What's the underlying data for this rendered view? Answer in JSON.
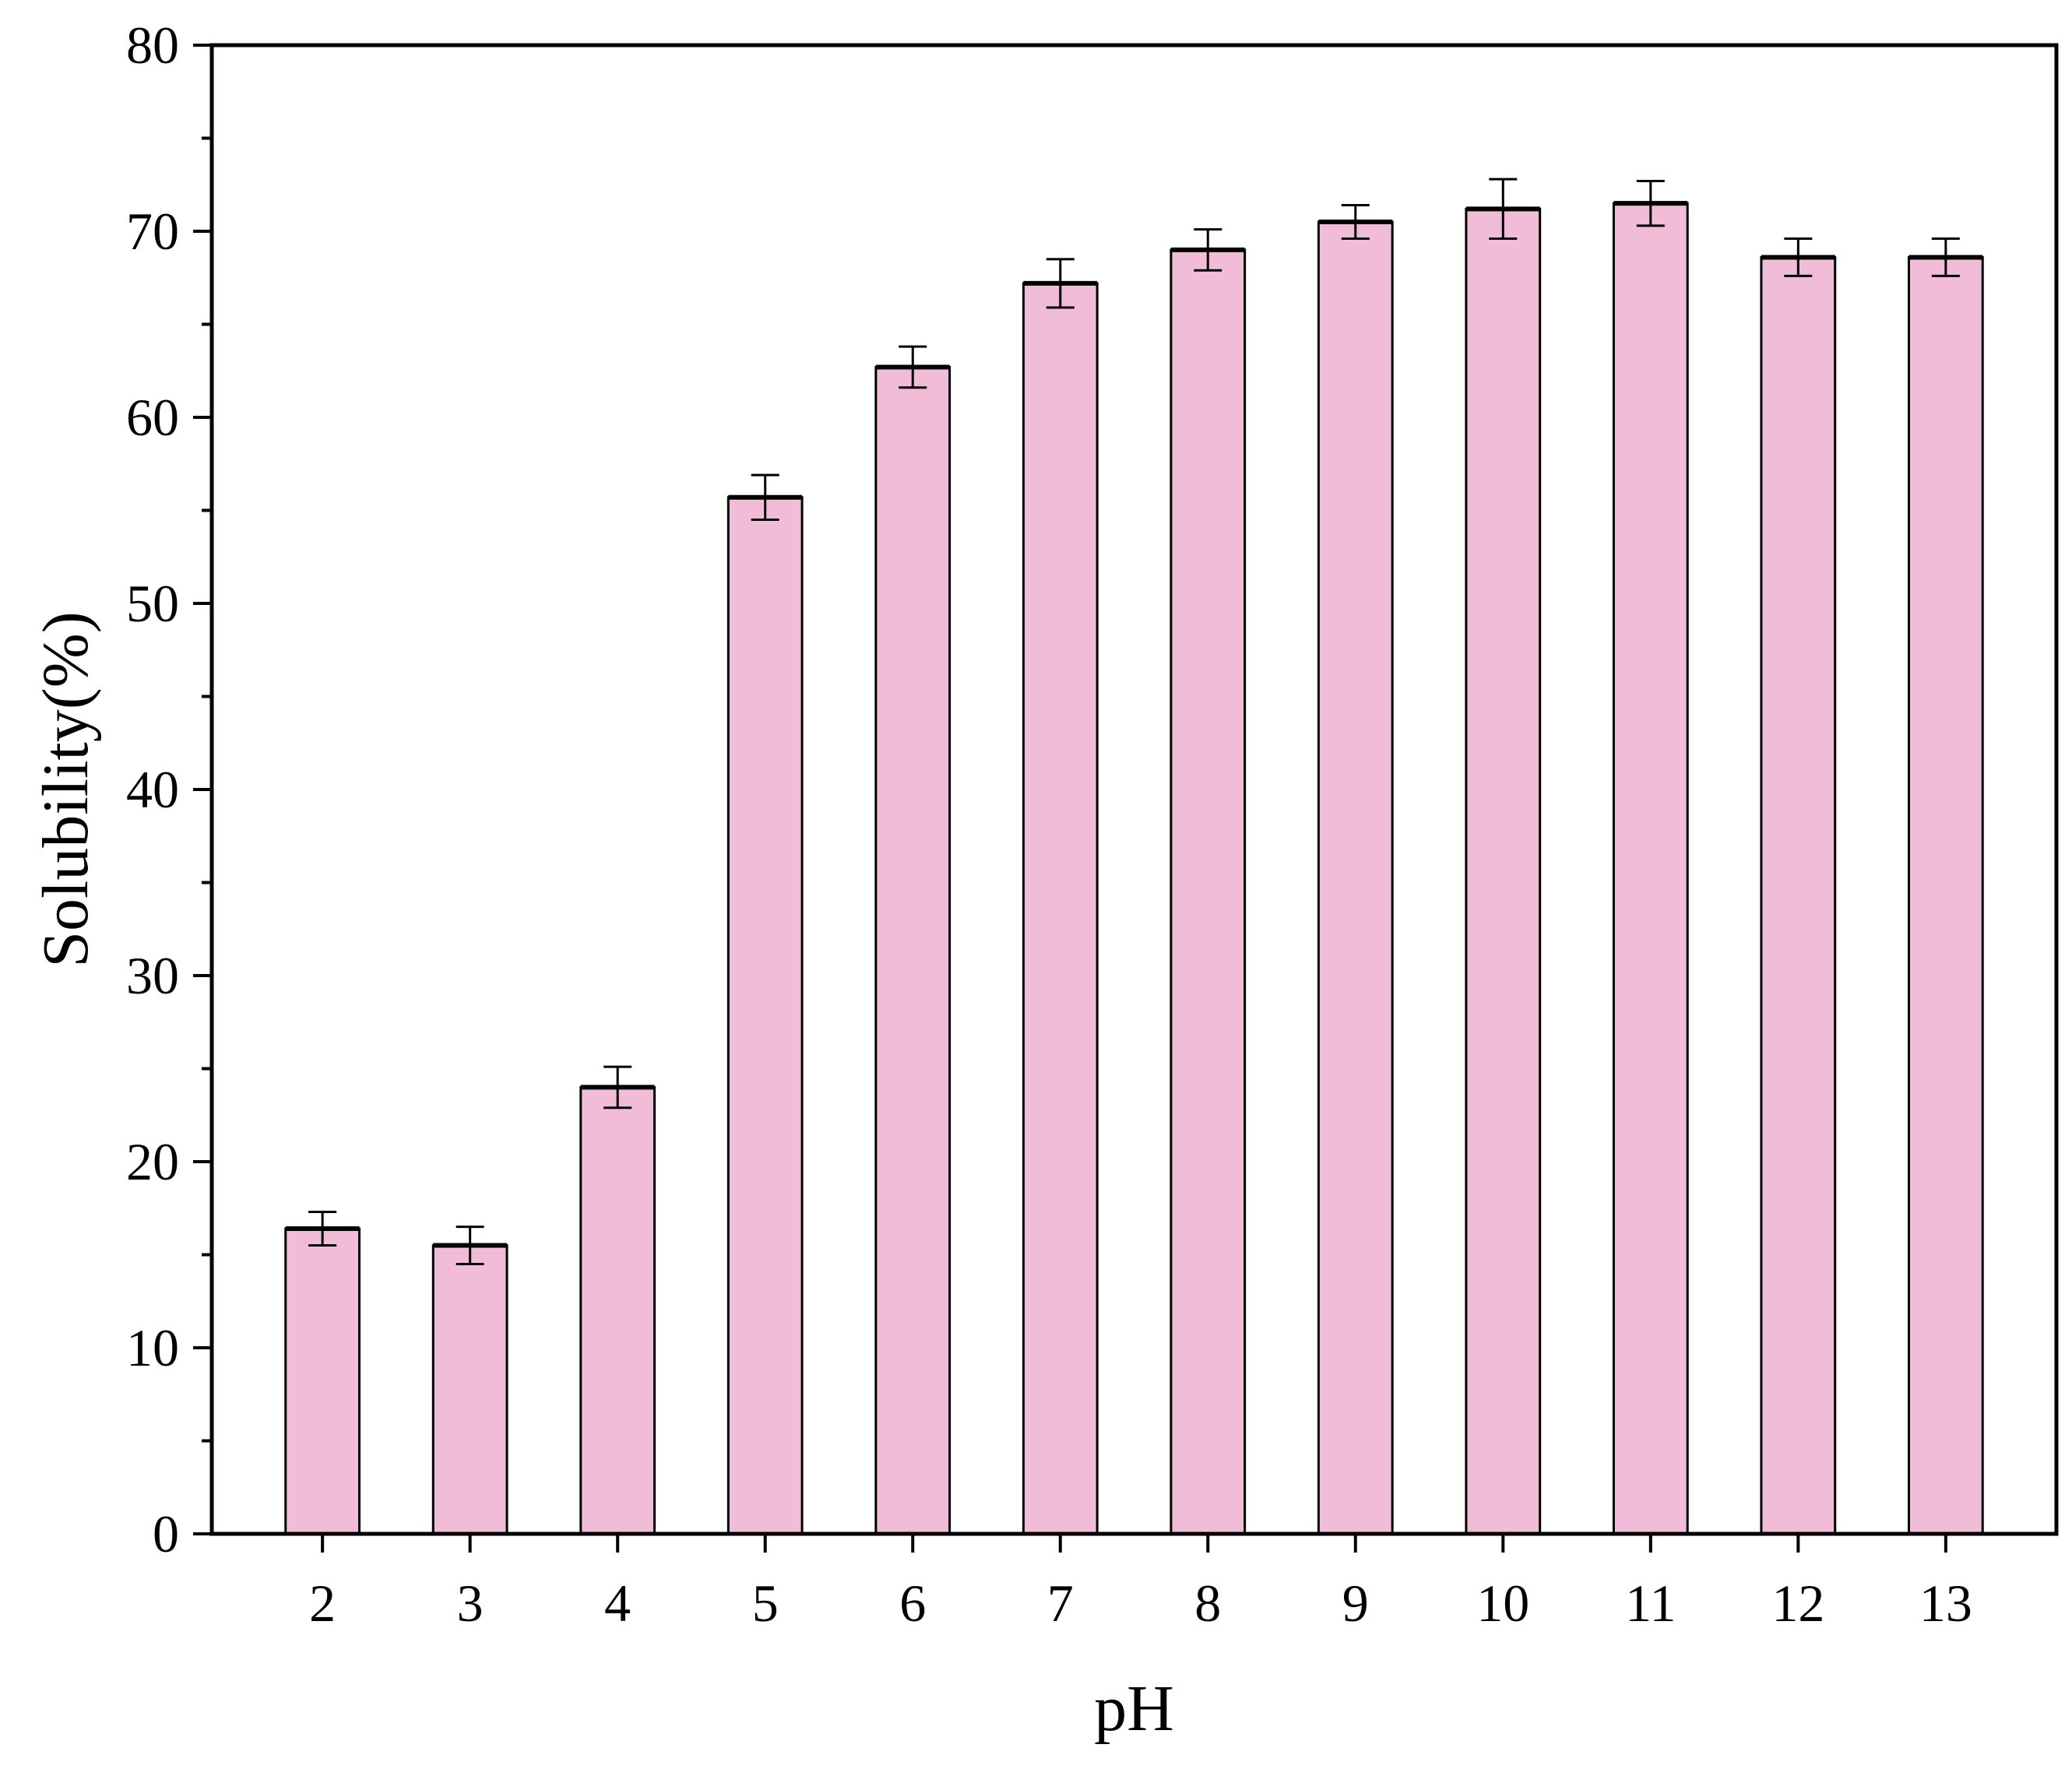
{
  "chart_data": {
    "type": "bar",
    "title": "",
    "xlabel": "pH",
    "ylabel": "Solubility(%)",
    "categories": [
      "2",
      "3",
      "4",
      "5",
      "6",
      "7",
      "8",
      "9",
      "10",
      "11",
      "12",
      "13"
    ],
    "values": [
      16.4,
      15.5,
      24.0,
      55.7,
      62.7,
      67.2,
      69.0,
      70.5,
      71.2,
      71.5,
      68.6,
      68.6
    ],
    "errors": [
      0.9,
      1.0,
      1.1,
      1.2,
      1.1,
      1.3,
      1.1,
      0.9,
      1.6,
      1.2,
      1.0,
      1.0
    ],
    "ylim": [
      0,
      80
    ],
    "yticks": [
      0,
      10,
      20,
      30,
      40,
      50,
      60,
      70,
      80
    ],
    "grid": false,
    "bar_color": "#f0bcd8",
    "edge_color": "#000000"
  }
}
